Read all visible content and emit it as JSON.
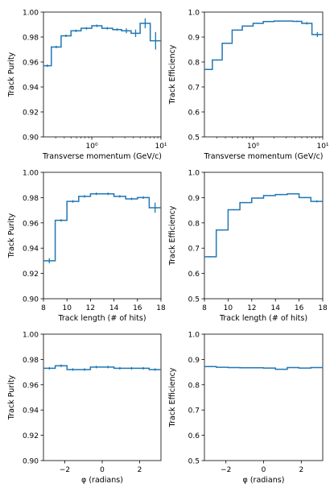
{
  "chart_data": [
    {
      "type": "step",
      "xlabel": "Transverse momentum (GeV/c)",
      "ylabel": "Track Purity",
      "xscale": "log",
      "xlim": [
        0.2,
        10
      ],
      "ylim": [
        0.9,
        1.0
      ],
      "yticks": [
        0.9,
        0.92,
        0.94,
        0.96,
        0.98,
        1.0
      ],
      "ytick_labels": [
        "0.90",
        "0.92",
        "0.94",
        "0.96",
        "0.98",
        "1.00"
      ],
      "xticks": [
        1,
        10
      ],
      "xtick_labels": [
        "10⁰",
        "10¹"
      ],
      "series": [
        {
          "edges": [
            0.2,
            0.26,
            0.36,
            0.5,
            0.7,
            1.0,
            1.4,
            2.0,
            2.7,
            3.7,
            5.0,
            7.0,
            10
          ],
          "values": [
            0.957,
            0.972,
            0.981,
            0.985,
            0.987,
            0.989,
            0.987,
            0.986,
            0.985,
            0.983,
            0.991,
            0.977
          ],
          "errors": [
            0.001,
            0.001,
            0.001,
            0.001,
            0.001,
            0.001,
            0.001,
            0.001,
            0.002,
            0.003,
            0.004,
            0.007
          ]
        }
      ]
    },
    {
      "type": "step",
      "xlabel": "Transverse momentum (GeV/c)",
      "ylabel": "Track Efficiency",
      "xscale": "log",
      "xlim": [
        0.2,
        10
      ],
      "ylim": [
        0.5,
        1.0
      ],
      "yticks": [
        0.5,
        0.6,
        0.7,
        0.8,
        0.9,
        1.0
      ],
      "ytick_labels": [
        "0.5",
        "0.6",
        "0.7",
        "0.8",
        "0.9",
        "1.0"
      ],
      "xticks": [
        1,
        10
      ],
      "xtick_labels": [
        "10⁰",
        "10¹"
      ],
      "series": [
        {
          "edges": [
            0.2,
            0.26,
            0.36,
            0.5,
            0.7,
            1.0,
            1.4,
            2.0,
            2.7,
            3.7,
            5.0,
            7.0,
            10
          ],
          "values": [
            0.77,
            0.808,
            0.875,
            0.928,
            0.944,
            0.955,
            0.962,
            0.964,
            0.964,
            0.963,
            0.955,
            0.91
          ],
          "errors": [
            0.002,
            0.002,
            0.002,
            0.002,
            0.002,
            0.002,
            0.002,
            0.002,
            0.002,
            0.003,
            0.005,
            0.01
          ]
        }
      ]
    },
    {
      "type": "step",
      "xlabel": "Track length (# of hits)",
      "ylabel": "Track Purity",
      "xscale": "linear",
      "xlim": [
        8,
        18
      ],
      "ylim": [
        0.9,
        1.0
      ],
      "yticks": [
        0.9,
        0.92,
        0.94,
        0.96,
        0.98,
        1.0
      ],
      "ytick_labels": [
        "0.90",
        "0.92",
        "0.94",
        "0.96",
        "0.98",
        "1.00"
      ],
      "xticks": [
        8,
        10,
        12,
        14,
        16,
        18
      ],
      "xtick_labels": [
        "8",
        "10",
        "12",
        "14",
        "16",
        "18"
      ],
      "series": [
        {
          "edges": [
            8,
            9,
            10,
            11,
            12,
            13,
            14,
            15,
            16,
            17,
            18
          ],
          "values": [
            0.93,
            0.962,
            0.977,
            0.981,
            0.983,
            0.983,
            0.981,
            0.979,
            0.98,
            0.972
          ],
          "errors": [
            0.002,
            0.001,
            0.001,
            0.001,
            0.001,
            0.001,
            0.001,
            0.001,
            0.001,
            0.004
          ]
        }
      ]
    },
    {
      "type": "step",
      "xlabel": "Track length (# of hits)",
      "ylabel": "Track Efficiency",
      "xscale": "linear",
      "xlim": [
        8,
        18
      ],
      "ylim": [
        0.5,
        1.0
      ],
      "yticks": [
        0.5,
        0.6,
        0.7,
        0.8,
        0.9,
        1.0
      ],
      "ytick_labels": [
        "0.5",
        "0.6",
        "0.7",
        "0.8",
        "0.9",
        "1.0"
      ],
      "xticks": [
        8,
        10,
        12,
        14,
        16,
        18
      ],
      "xtick_labels": [
        "8",
        "10",
        "12",
        "14",
        "16",
        "18"
      ],
      "series": [
        {
          "edges": [
            8,
            9,
            10,
            11,
            12,
            13,
            14,
            15,
            16,
            17,
            18
          ],
          "values": [
            0.666,
            0.772,
            0.852,
            0.88,
            0.898,
            0.908,
            0.912,
            0.915,
            0.9,
            0.885
          ],
          "errors": [
            0.002,
            0.002,
            0.002,
            0.002,
            0.002,
            0.002,
            0.002,
            0.002,
            0.002,
            0.004
          ]
        }
      ]
    },
    {
      "type": "step",
      "xlabel": "φ (radians)",
      "ylabel": "Track Purity",
      "xscale": "linear",
      "xlim": [
        -3.14,
        3.14
      ],
      "ylim": [
        0.9,
        1.0
      ],
      "yticks": [
        0.9,
        0.92,
        0.94,
        0.96,
        0.98,
        1.0
      ],
      "ytick_labels": [
        "0.90",
        "0.92",
        "0.94",
        "0.96",
        "0.98",
        "1.00"
      ],
      "xticks": [
        -2,
        0,
        2
      ],
      "xtick_labels": [
        "−2",
        "0",
        "2"
      ],
      "series": [
        {
          "edges": [
            -3.14,
            -2.51,
            -1.88,
            -1.26,
            -0.63,
            0,
            0.63,
            1.26,
            1.88,
            2.51,
            3.14
          ],
          "values": [
            0.973,
            0.975,
            0.972,
            0.972,
            0.974,
            0.974,
            0.973,
            0.973,
            0.973,
            0.972
          ],
          "errors": [
            0.001,
            0.001,
            0.001,
            0.001,
            0.001,
            0.001,
            0.001,
            0.001,
            0.001,
            0.001
          ]
        }
      ]
    },
    {
      "type": "step",
      "xlabel": "φ (radians)",
      "ylabel": "Track Efficiency",
      "xscale": "linear",
      "xlim": [
        -3.14,
        3.14
      ],
      "ylim": [
        0.5,
        1.0
      ],
      "yticks": [
        0.5,
        0.6,
        0.7,
        0.8,
        0.9,
        1.0
      ],
      "ytick_labels": [
        "0.5",
        "0.6",
        "0.7",
        "0.8",
        "0.9",
        "1.0"
      ],
      "xticks": [
        -2,
        0,
        2
      ],
      "xtick_labels": [
        "−2",
        "0",
        "2"
      ],
      "series": [
        {
          "edges": [
            -3.14,
            -2.51,
            -1.88,
            -1.26,
            -0.63,
            0,
            0.63,
            1.26,
            1.88,
            2.51,
            3.14
          ],
          "values": [
            0.872,
            0.869,
            0.868,
            0.867,
            0.867,
            0.866,
            0.861,
            0.868,
            0.866,
            0.868
          ],
          "errors": [
            0.001,
            0.001,
            0.001,
            0.001,
            0.001,
            0.001,
            0.001,
            0.001,
            0.001,
            0.001
          ]
        }
      ]
    }
  ],
  "colors": {
    "series": "#1f77b4",
    "axes": "#000000"
  }
}
